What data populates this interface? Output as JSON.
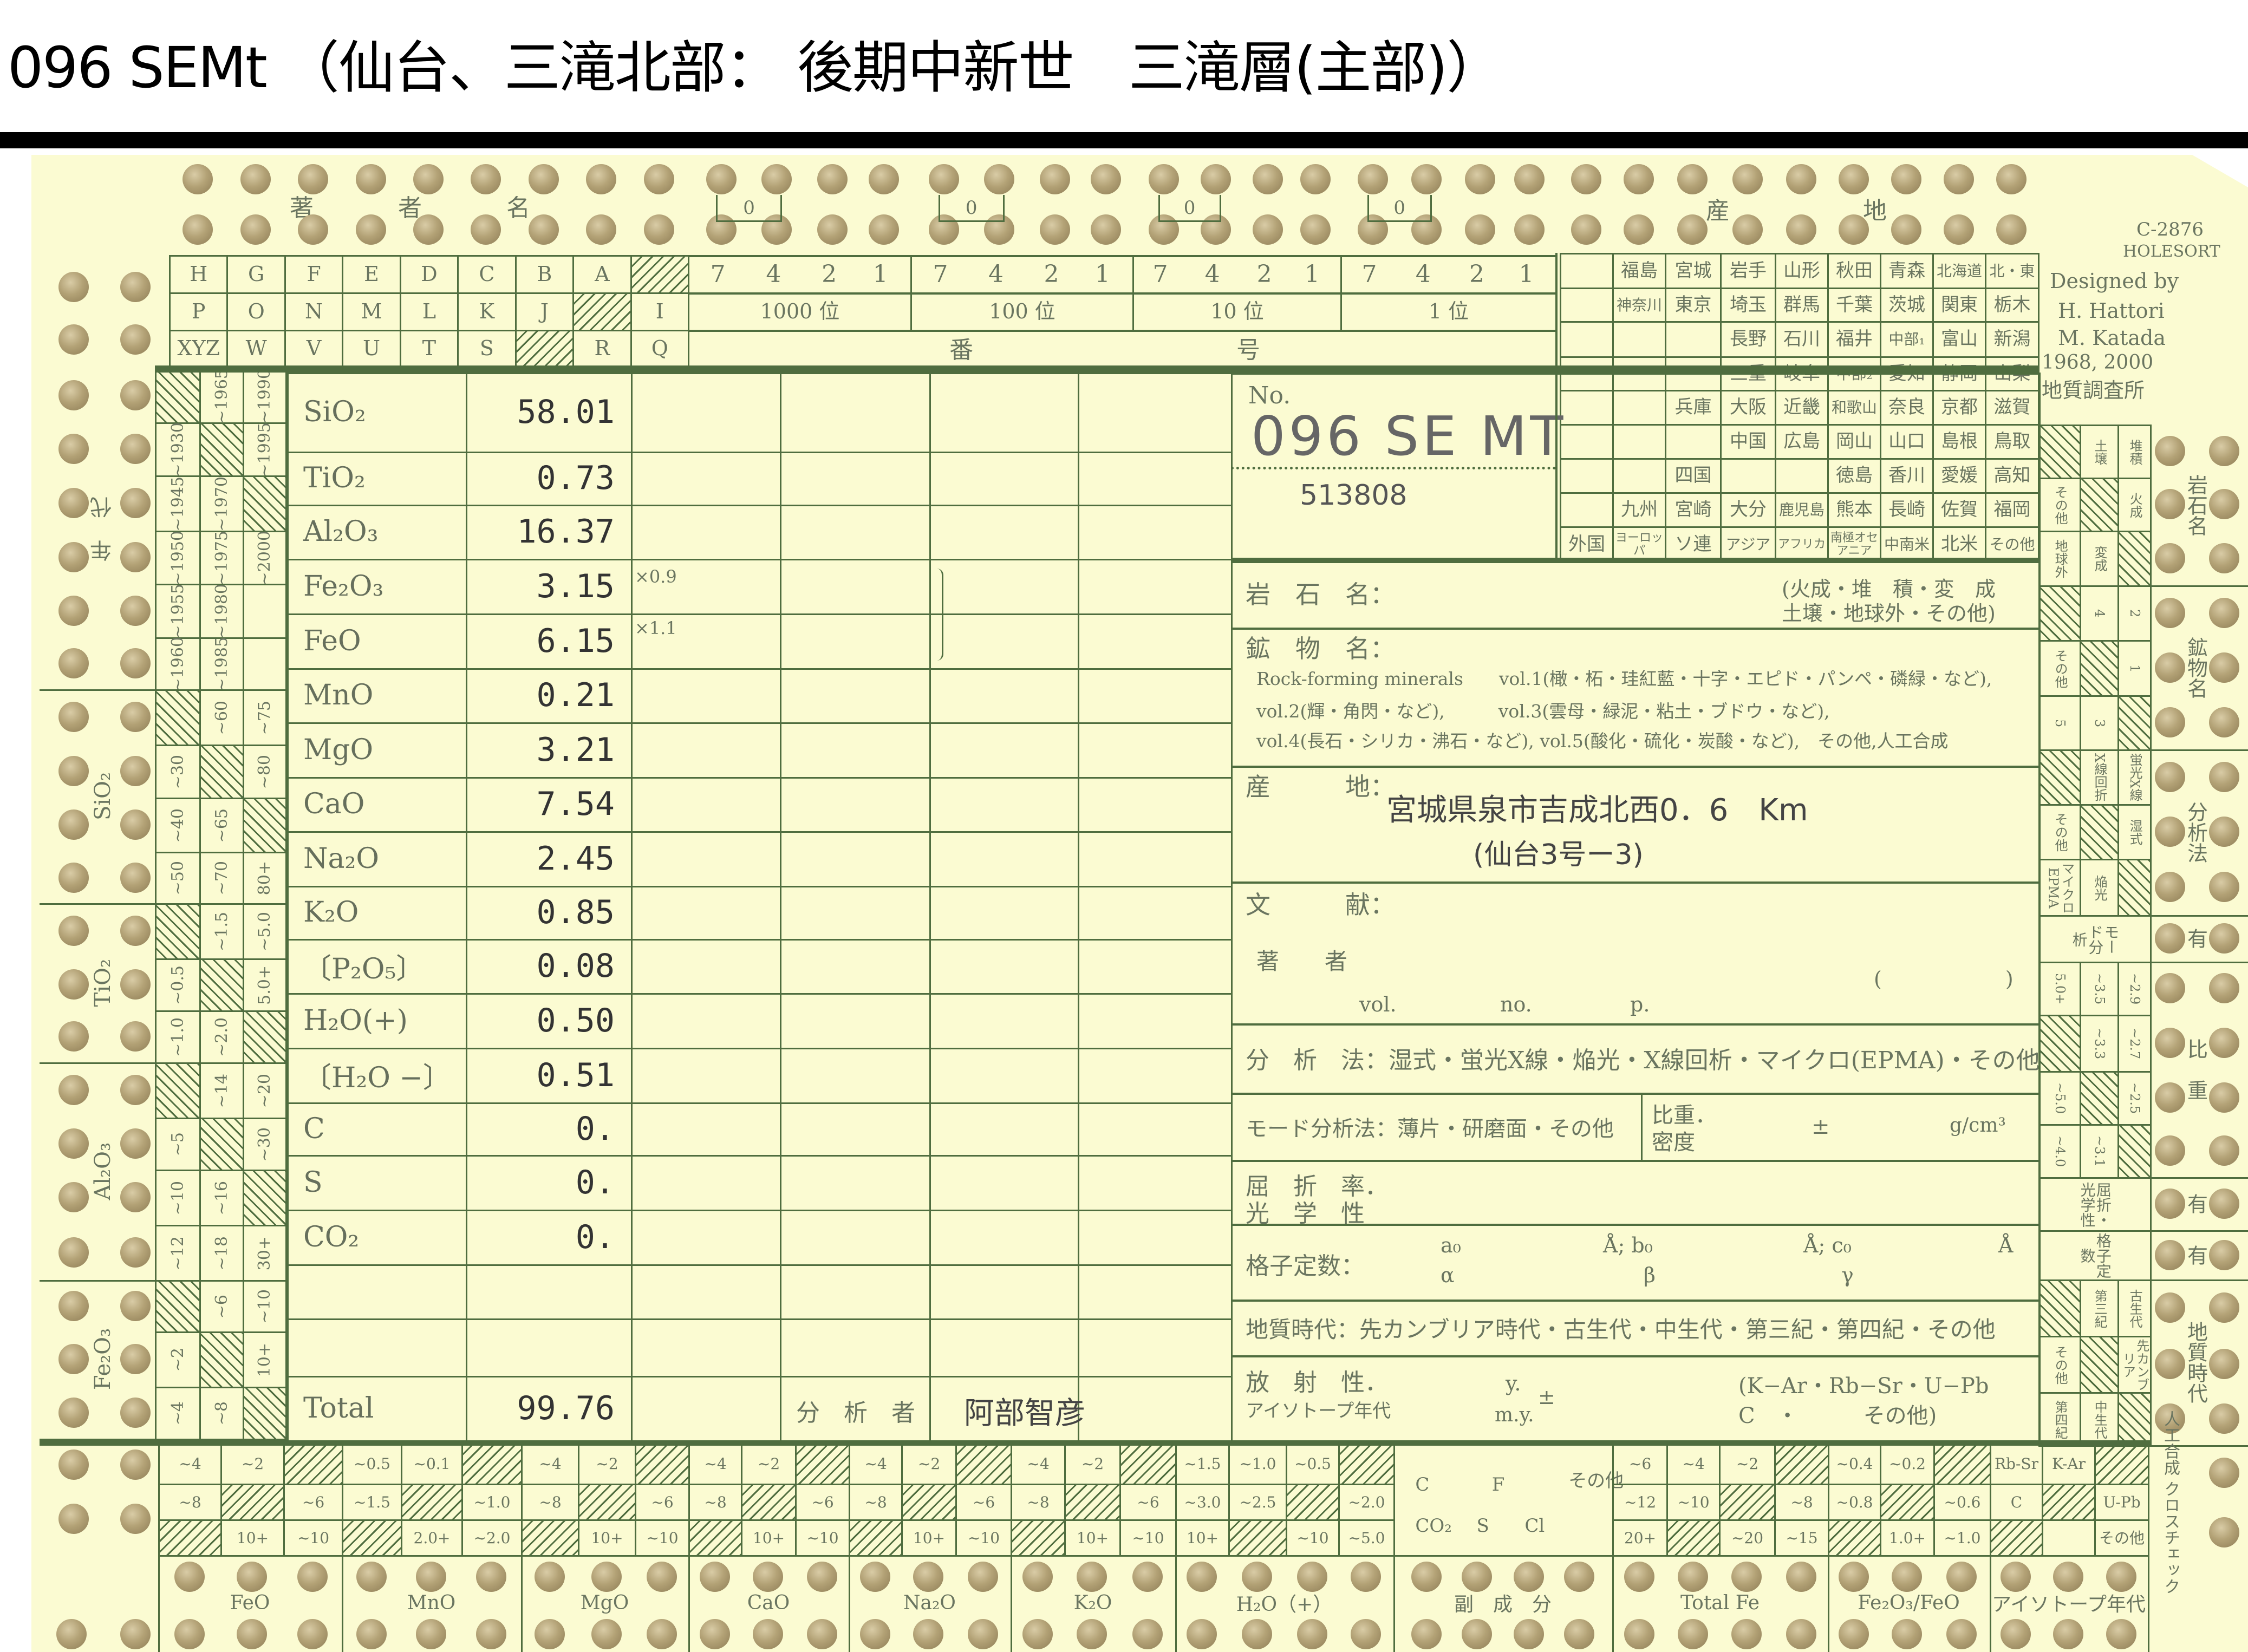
{
  "title": "096 SEMt （仙台、三滝北部： 後期中新世　三滝層(主部)）",
  "colors": {
    "card": "#fbfbd2",
    "rule": "#4f6d3f",
    "hole": "#b3a276",
    "print": "#6a7560"
  },
  "header": {
    "author_chars": [
      "著",
      "者",
      "名"
    ],
    "letters": [
      [
        "H",
        "G",
        "F",
        "E",
        "D",
        "C",
        "B",
        "A",
        null
      ],
      [
        "P",
        "O",
        "N",
        "M",
        "L",
        "K",
        "J",
        null,
        "I"
      ],
      [
        "XYZ",
        "W",
        "V",
        "U",
        "T",
        "S",
        null,
        "R",
        "Q"
      ]
    ],
    "bracket_zero": "0",
    "number_groups": [
      {
        "bits": [
          "7",
          "4",
          "2",
          "1"
        ],
        "label": "1000 位"
      },
      {
        "bits": [
          "7",
          "4",
          "2",
          "1"
        ],
        "label": "100 位"
      },
      {
        "bits": [
          "7",
          "4",
          "2",
          "1"
        ],
        "label": "10 位"
      },
      {
        "bits": [
          "7",
          "4",
          "2",
          "1"
        ],
        "label": "1 位"
      }
    ],
    "number_row3": [
      "番",
      "号"
    ],
    "region_chars": [
      "産",
      "地"
    ],
    "prefectures": [
      [
        "",
        "福島",
        "宮城",
        "岩手",
        "山形",
        "秋田",
        "青森",
        "北海道",
        "北・東"
      ],
      [
        "",
        "神奈川",
        "東京",
        "埼玉",
        "群馬",
        "千葉",
        "茨城",
        "関東",
        "栃木"
      ],
      [
        "",
        "",
        "",
        "長野",
        "石川",
        "福井",
        "中部₁",
        "富山",
        "新潟"
      ],
      [
        "",
        "",
        "",
        "三重",
        "岐阜",
        "中部₂",
        "愛知",
        "静岡",
        "山梨"
      ],
      [
        "",
        "",
        "兵庫",
        "大阪",
        "近畿",
        "和歌山",
        "奈良",
        "京都",
        "滋賀"
      ],
      [
        "",
        "",
        "",
        "中国",
        "広島",
        "岡山",
        "山口",
        "島根",
        "鳥取"
      ],
      [
        "",
        "",
        "四国",
        "",
        "",
        "徳島",
        "香川",
        "愛媛",
        "高知"
      ],
      [
        "",
        "九州",
        "宮崎",
        "大分",
        "鹿児島",
        "熊本",
        "長崎",
        "佐賀",
        "福岡"
      ],
      [
        "外国",
        "ヨーロッパ",
        "ソ連",
        "アジア",
        "アフリカ",
        "南極オセアニア",
        "中南米",
        "北米",
        "その他"
      ]
    ]
  },
  "designer": {
    "code": "C-2876",
    "brand": "HOLESORT",
    "designed_by": "Designed by",
    "name1": "H. Hattori",
    "name2": "M. Katada",
    "years": "1968, 2000",
    "org": "地質調査所"
  },
  "left_strip": [
    {
      "label": "年　代",
      "rows": [
        [
          null,
          "~1965",
          "~1990"
        ],
        [
          "~1930",
          null,
          "~1995"
        ],
        [
          "~1945",
          "~1970",
          null
        ],
        [
          "~1950",
          "~1975",
          "~2000"
        ],
        [
          "~1955",
          "~1980",
          ""
        ],
        [
          "~1960",
          "~1985",
          ""
        ]
      ]
    },
    {
      "label": "SiO₂",
      "rows": [
        [
          null,
          "~60",
          "~75"
        ],
        [
          "~30",
          null,
          "~80"
        ],
        [
          "~40",
          "~65",
          null
        ],
        [
          "~50",
          "~70",
          "80+"
        ]
      ]
    },
    {
      "label": "TiO₂",
      "rows": [
        [
          null,
          "~1.5",
          "~5.0"
        ],
        [
          "~0.5",
          null,
          "5.0+"
        ],
        [
          "~1.0",
          "~2.0",
          null
        ]
      ]
    },
    {
      "label": "Al₂O₃",
      "rows": [
        [
          null,
          "~14",
          "~20"
        ],
        [
          "~5",
          null,
          "~30"
        ],
        [
          "~10",
          "~16",
          null
        ],
        [
          "~12",
          "~18",
          "30+"
        ]
      ]
    },
    {
      "label": "Fe₂O₃",
      "rows": [
        [
          null,
          "~6",
          "~10"
        ],
        [
          "~2",
          null,
          "10+"
        ],
        [
          "~4",
          "~8",
          null
        ]
      ]
    }
  ],
  "right_strip": [
    {
      "label": "岩石名",
      "rows": [
        [
          null,
          "土壌",
          "堆積"
        ],
        [
          "その他",
          null,
          "火成"
        ],
        [
          "地球外",
          "変成",
          null
        ]
      ]
    },
    {
      "label": "鉱物名",
      "rows": [
        [
          null,
          "4",
          "2"
        ],
        [
          "その他",
          null,
          "1"
        ],
        [
          "5",
          "3",
          null
        ]
      ]
    },
    {
      "label": "分析法",
      "rows": [
        [
          null,
          "X線回折",
          "蛍光X線"
        ],
        [
          "その他",
          null,
          "湿式"
        ],
        [
          "マイクロEPMA",
          "焔光",
          null
        ]
      ]
    },
    {
      "label": "有",
      "span": "モード分析"
    },
    {
      "label": "比　重",
      "rows": [
        [
          "5.0+",
          "~3.5",
          "~2.9"
        ],
        [
          null,
          "~3.3",
          "~2.7"
        ],
        [
          "~5.0",
          null,
          "~2.5"
        ],
        [
          "~4.0",
          "~3.1",
          null
        ]
      ]
    },
    {
      "label": "有",
      "span": "屈折・光学性"
    },
    {
      "label": "有",
      "span": "格子定数"
    },
    {
      "label": "地質時代",
      "rows": [
        [
          null,
          "第三紀",
          "古生代"
        ],
        [
          "その他",
          null,
          "先カンブリア"
        ],
        [
          "第四紀",
          "中生代",
          null
        ]
      ]
    }
  ],
  "corner_label": "人工合成 クロスチェック",
  "chemistry": {
    "rows": [
      {
        "label": "SiO₂",
        "value": "58.01"
      },
      {
        "label": "TiO₂",
        "value": "0.73"
      },
      {
        "label": "Al₂O₃",
        "value": "16.37"
      },
      {
        "label": "Fe₂O₃",
        "value": "3.15"
      },
      {
        "label": "FeO",
        "value": "6.15"
      },
      {
        "label": "MnO",
        "value": "0.21"
      },
      {
        "label": "MgO",
        "value": "3.21"
      },
      {
        "label": "CaO",
        "value": "7.54"
      },
      {
        "label": "Na₂O",
        "value": "2.45"
      },
      {
        "label": "K₂O",
        "value": "0.85"
      },
      {
        "label": "〔P₂O₅〕",
        "value": "0.08"
      },
      {
        "label": "H₂O(+)",
        "value": "0.50"
      },
      {
        "label": "〔H₂O −〕",
        "value": "0.51"
      },
      {
        "label": "C",
        "value": "0."
      },
      {
        "label": "S",
        "value": "0."
      },
      {
        "label": "CO₂",
        "value": "0."
      },
      {
        "label": "",
        "value": ""
      },
      {
        "label": "",
        "value": ""
      },
      {
        "label": "Total",
        "value": "99.76"
      }
    ],
    "factor_fe2o3": "×0.9",
    "factor_feo": "×1.1",
    "analyst_label": "分　析　者",
    "analyst": "阿部智彦"
  },
  "sample": {
    "no_label": "No.",
    "number": "096 SE MT",
    "id": "513808"
  },
  "panel": {
    "rock_label": "岩　石　名：",
    "rock_types_1": "(火成・堆　積・変　成",
    "rock_types_2": " 土壌・地球外・その他)",
    "mineral_label": "鉱　物　名：",
    "mineral_line1": "Rock-forming minerals　　vol.1(橄・柘・珪紅藍・十字・エピド・パンペ・磷緑・など),",
    "mineral_line2": "vol.2(輝・角閃・など),　　　vol.3(雲母・緑泥・粘土・ブドウ・など),",
    "mineral_line3": "vol.4(長石・シリカ・沸石・など), vol.5(酸化・硫化・炭酸・など),　その他,人工合成",
    "locality_label": "産　　　地：",
    "locality": "宮城県泉市吉成北西0．6　Km",
    "locality_sub": "(仙台3号ー3)",
    "literature_label": "文　　　献：",
    "author_label": "著　　者",
    "vol": "vol.",
    "no": "no.",
    "p": "p.",
    "paren": "(　　　　　　)",
    "analysis": "分　析　法：湿式・蛍光X線・焔光・X線回析・マイクロ(EPMA)・その他",
    "mode": "モード分析法：薄片・研磨面・その他",
    "density_1": "比重．",
    "density_2": "密度",
    "pm": "±",
    "density_unit": "g/cm³",
    "refr_1": "屈　折　率．",
    "refr_2": "光　学　性",
    "lattice_label": "格子定数：",
    "a0": "a₀",
    "b0": "Å; b₀",
    "c0": "Å; c₀",
    "ang": "Å",
    "alpha": "α",
    "beta": "β",
    "gamma": "γ",
    "geo_age": "地質時代：先カンブリア時代・古生代・中生代・第三紀・第四紀・その他",
    "radio_1": "放　射　性．",
    "radio_2": "アイソトープ年代",
    "y": "y.",
    "my": "m.y.",
    "methods_1": "(K−Ar・Rb−Sr・U−Pb",
    "methods_2": " C　・　　　その他)"
  },
  "bottom_strip": {
    "groups": [
      {
        "label": "FeO",
        "cols": [
          [
            "~4",
            "~8",
            null
          ],
          [
            "~2",
            null,
            "10+"
          ],
          [
            null,
            "~6",
            "~10"
          ]
        ]
      },
      {
        "label": "MnO",
        "cols": [
          [
            "~0.5",
            "~1.5",
            null
          ],
          [
            "~0.1",
            null,
            "2.0+"
          ],
          [
            null,
            "~1.0",
            "~2.0"
          ]
        ]
      },
      {
        "label": "MgO",
        "cols": [
          [
            "~4",
            "~8",
            null
          ],
          [
            "~2",
            null,
            "10+"
          ],
          [
            null,
            "~6",
            "~10"
          ]
        ]
      },
      {
        "label": "CaO",
        "cols": [
          [
            "~4",
            "~8",
            null
          ],
          [
            "~2",
            null,
            "10+"
          ],
          [
            null,
            "~6",
            "~10"
          ]
        ]
      },
      {
        "label": "Na₂O",
        "cols": [
          [
            "~4",
            "~8",
            null
          ],
          [
            "~2",
            null,
            "10+"
          ],
          [
            null,
            "~6",
            "~10"
          ]
        ]
      },
      {
        "label": "K₂O",
        "cols": [
          [
            "~4",
            "~8",
            null
          ],
          [
            "~2",
            null,
            "10+"
          ],
          [
            null,
            "~6",
            "~10"
          ]
        ]
      },
      {
        "label": "H₂O（+）",
        "cols": [
          [
            "~1.5",
            "~3.0",
            "10+"
          ],
          [
            "~1.0",
            "~2.5",
            null
          ],
          [
            "~0.5",
            null,
            "~10"
          ],
          [
            null,
            "~2.0",
            "~5.0"
          ]
        ]
      },
      {
        "label": "副　成　分",
        "merged": [
          "C",
          "F",
          "その他",
          "CO₂",
          "S",
          "Cl"
        ]
      },
      {
        "label": "Total Fe",
        "cols": [
          [
            "~6",
            "~12",
            "20+"
          ],
          [
            "~4",
            "~10",
            null
          ],
          [
            "~2",
            null,
            "~20"
          ],
          [
            null,
            "~8",
            "~15"
          ]
        ]
      },
      {
        "label": "Fe₂O₃/FeO",
        "cols": [
          [
            "~0.4",
            "~0.8",
            null
          ],
          [
            "~0.2",
            null,
            "1.0+"
          ],
          [
            null,
            "~0.6",
            "~1.0"
          ]
        ]
      },
      {
        "label": "アイソトープ年代",
        "cols": [
          [
            "Rb-Sr",
            "C",
            null
          ],
          [
            "K-Ar",
            null,
            ""
          ],
          [
            null,
            "U-Pb",
            "その他"
          ]
        ]
      }
    ]
  }
}
